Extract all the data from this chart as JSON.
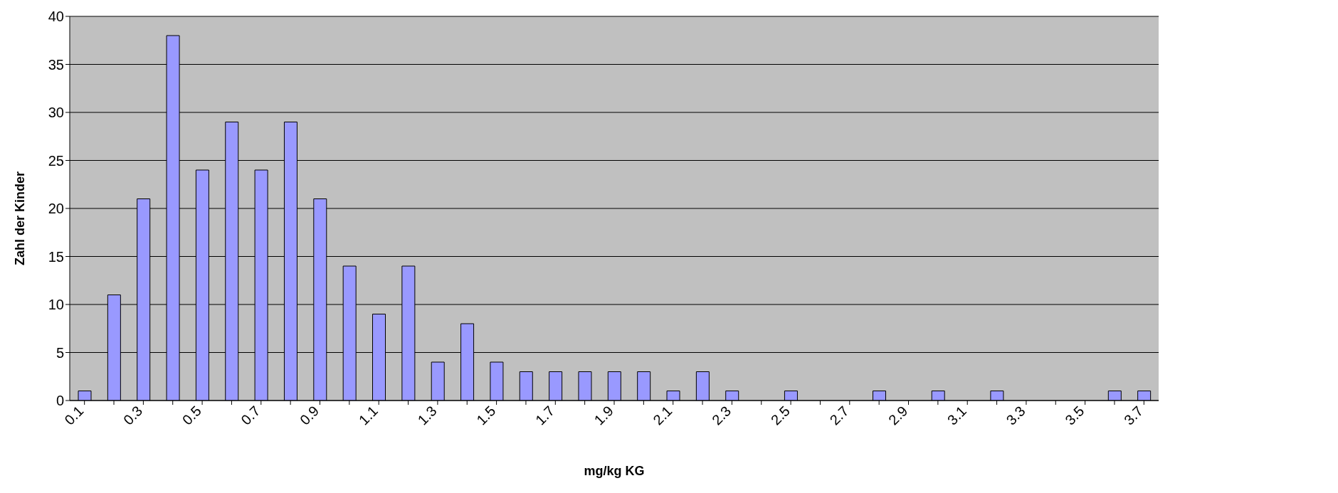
{
  "chart_data": {
    "type": "bar",
    "xlabel": "mg/kg KG",
    "ylabel": "Zahl der Kinder",
    "categories": [
      "0.1",
      null,
      "0.3",
      null,
      "0.5",
      null,
      "0.7",
      null,
      "0.9",
      null,
      "1.1",
      null,
      "1.3",
      null,
      "1.5",
      null,
      "1.7",
      null,
      "1.9",
      null,
      "2.1",
      null,
      "2.3",
      null,
      "2.5",
      null,
      "2.7",
      null,
      "2.9",
      null,
      "3.1",
      null,
      "3.3",
      null,
      "3.5",
      null,
      "3.7"
    ],
    "series": [
      {
        "color": "#9999ff",
        "values": [
          1,
          11,
          21,
          38,
          24,
          29,
          24,
          29,
          21,
          14,
          9,
          14,
          4,
          8,
          4,
          3,
          3,
          3,
          3,
          3,
          1,
          3,
          1,
          0,
          1,
          0,
          0,
          1,
          0,
          1,
          0,
          1,
          0,
          0,
          0,
          1,
          1
        ]
      }
    ],
    "ylim": [
      0,
      40
    ],
    "yticks": [
      0,
      5,
      10,
      15,
      20,
      25,
      30,
      35,
      40
    ],
    "grid": "y",
    "legend": false
  }
}
